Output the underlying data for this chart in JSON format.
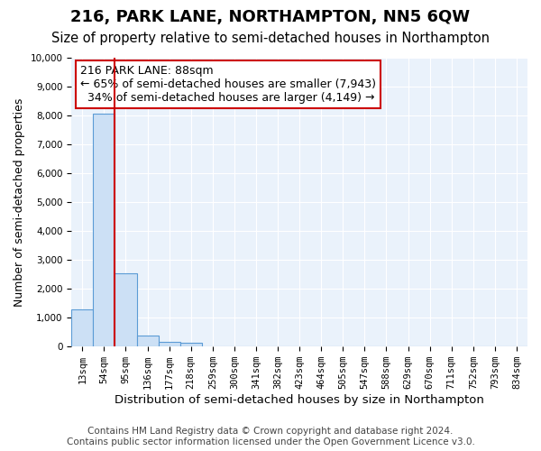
{
  "title": "216, PARK LANE, NORTHAMPTON, NN5 6QW",
  "subtitle": "Size of property relative to semi-detached houses in Northampton",
  "xlabel": "Distribution of semi-detached houses by size in Northampton",
  "ylabel": "Number of semi-detached properties",
  "footer": "Contains HM Land Registry data © Crown copyright and database right 2024.\nContains public sector information licensed under the Open Government Licence v3.0.",
  "bin_labels": [
    "13sqm",
    "54sqm",
    "95sqm",
    "136sqm",
    "177sqm",
    "218sqm",
    "259sqm",
    "300sqm",
    "341sqm",
    "382sqm",
    "423sqm",
    "464sqm",
    "505sqm",
    "547sqm",
    "588sqm",
    "629sqm",
    "670sqm",
    "711sqm",
    "752sqm",
    "793sqm",
    "834sqm"
  ],
  "bar_values": [
    1300,
    8050,
    2550,
    380,
    160,
    120,
    0,
    0,
    0,
    0,
    0,
    0,
    0,
    0,
    0,
    0,
    0,
    0,
    0,
    0,
    0
  ],
  "bar_color": "#cce0f5",
  "bar_edge_color": "#5b9bd5",
  "property_line_x": 1.5,
  "property_sqm": 88,
  "property_name": "216 PARK LANE",
  "pct_smaller": 65,
  "count_smaller": "7,943",
  "pct_larger": 34,
  "count_larger": "4,149",
  "line_color": "#cc0000",
  "annotation_box_color": "#cc0000",
  "ylim": [
    0,
    10000
  ],
  "yticks": [
    0,
    1000,
    2000,
    3000,
    4000,
    5000,
    6000,
    7000,
    8000,
    9000,
    10000
  ],
  "background_color": "#eaf2fb",
  "grid_color": "#ffffff",
  "title_fontsize": 13,
  "subtitle_fontsize": 10.5,
  "xlabel_fontsize": 9.5,
  "ylabel_fontsize": 9,
  "tick_fontsize": 7.5,
  "footer_fontsize": 7.5,
  "annotation_fontsize": 9
}
